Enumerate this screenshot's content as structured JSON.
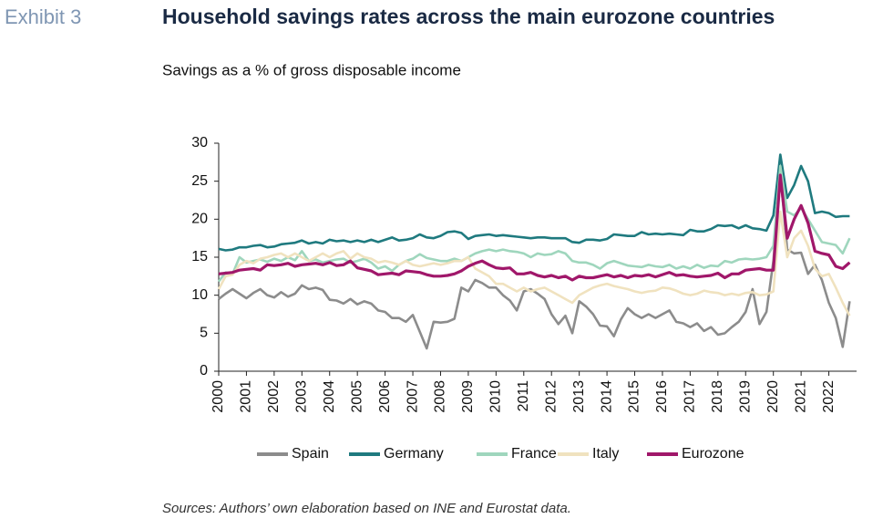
{
  "chart_data": {
    "type": "line",
    "label": "Exhibit 3",
    "title": "Household savings rates across the main eurozone countries",
    "subtitle": "Savings as a % of gross disposable income",
    "source": "Sources: Authors’ own elaboration based on INE and Eurostat data.",
    "x": [
      2000,
      2000.25,
      2000.5,
      2000.75,
      2001,
      2001.25,
      2001.5,
      2001.75,
      2002,
      2002.25,
      2002.5,
      2002.75,
      2003,
      2003.25,
      2003.5,
      2003.75,
      2004,
      2004.25,
      2004.5,
      2004.75,
      2005,
      2005.25,
      2005.5,
      2005.75,
      2006,
      2006.25,
      2006.5,
      2006.75,
      2007,
      2007.25,
      2007.5,
      2007.75,
      2008,
      2008.25,
      2008.5,
      2008.75,
      2009,
      2009.25,
      2009.5,
      2009.75,
      2010,
      2010.25,
      2010.5,
      2010.75,
      2011,
      2011.25,
      2011.5,
      2011.75,
      2012,
      2012.25,
      2012.5,
      2012.75,
      2013,
      2013.25,
      2013.5,
      2013.75,
      2014,
      2014.25,
      2014.5,
      2014.75,
      2015,
      2015.25,
      2015.5,
      2015.75,
      2016,
      2016.25,
      2016.5,
      2016.75,
      2017,
      2017.25,
      2017.5,
      2017.75,
      2018,
      2018.25,
      2018.5,
      2018.75,
      2019,
      2019.25,
      2019.5,
      2019.75,
      2020,
      2020.25,
      2020.5,
      2020.75,
      2021,
      2021.25,
      2021.5,
      2021.75,
      2022,
      2022.25,
      2022.5,
      2022.75
    ],
    "xlim": [
      2000,
      2023
    ],
    "xticks": [
      2000,
      2001,
      2002,
      2003,
      2004,
      2005,
      2006,
      2007,
      2008,
      2009,
      2010,
      2011,
      2012,
      2013,
      2014,
      2015,
      2016,
      2017,
      2018,
      2019,
      2020,
      2021,
      2022
    ],
    "ylim": [
      0,
      30
    ],
    "yticks": [
      0,
      5,
      10,
      15,
      20,
      25,
      30
    ],
    "series": [
      {
        "name": "Spain",
        "color": "#8c8c8c",
        "values": [
          9.5,
          10.2,
          10.8,
          10.2,
          9.6,
          10.3,
          10.8,
          10.0,
          9.7,
          10.4,
          9.8,
          10.2,
          11.3,
          10.8,
          11.0,
          10.7,
          9.4,
          9.3,
          8.9,
          9.5,
          8.8,
          9.2,
          8.9,
          8.0,
          7.8,
          7.0,
          7.0,
          6.5,
          7.4,
          5.2,
          3.0,
          6.5,
          6.4,
          6.5,
          6.9,
          11.0,
          10.5,
          12.0,
          11.6,
          11.0,
          11.0,
          10.0,
          9.3,
          8.0,
          10.5,
          10.8,
          10.2,
          9.5,
          7.5,
          6.2,
          7.3,
          5.0,
          9.2,
          8.5,
          7.5,
          6.0,
          5.9,
          4.6,
          6.8,
          8.3,
          7.5,
          7.0,
          7.5,
          7.0,
          7.5,
          8.0,
          6.5,
          6.3,
          5.8,
          6.3,
          5.3,
          5.8,
          4.8,
          5.0,
          5.8,
          6.5,
          7.8,
          10.8,
          6.2,
          7.8,
          14.5,
          26.0,
          16.0,
          15.5,
          15.6,
          12.8,
          14.0,
          12.0,
          9.0,
          7.0,
          3.2,
          9.2
        ]
      },
      {
        "name": "Germany",
        "color": "#1f7a7f",
        "values": [
          16.1,
          15.9,
          16.0,
          16.3,
          16.3,
          16.5,
          16.6,
          16.3,
          16.4,
          16.7,
          16.8,
          16.9,
          17.2,
          16.8,
          17.0,
          16.8,
          17.3,
          17.1,
          17.2,
          17.0,
          17.2,
          17.0,
          17.3,
          17.0,
          17.3,
          17.6,
          17.2,
          17.3,
          17.5,
          18.0,
          17.6,
          17.5,
          17.8,
          18.3,
          18.4,
          18.2,
          17.4,
          17.8,
          17.9,
          18.0,
          17.8,
          17.9,
          17.8,
          17.7,
          17.6,
          17.5,
          17.6,
          17.6,
          17.5,
          17.5,
          17.5,
          17.0,
          16.9,
          17.3,
          17.3,
          17.2,
          17.4,
          18.0,
          17.9,
          17.8,
          17.8,
          18.3,
          18.0,
          18.1,
          18.0,
          18.1,
          18.0,
          17.9,
          18.6,
          18.4,
          18.4,
          18.7,
          19.2,
          19.1,
          19.2,
          18.8,
          19.2,
          18.8,
          18.7,
          18.5,
          20.5,
          28.5,
          22.8,
          24.5,
          27.0,
          25.0,
          20.8,
          21.0,
          20.8,
          20.3,
          20.4,
          20.4
        ]
      },
      {
        "name": "France",
        "color": "#9fd6bd",
        "values": [
          11.8,
          13.0,
          12.8,
          15.0,
          14.3,
          14.5,
          14.7,
          14.4,
          14.8,
          14.5,
          15.0,
          14.6,
          15.8,
          14.5,
          14.7,
          14.3,
          14.5,
          14.7,
          14.8,
          14.3,
          14.5,
          14.8,
          14.3,
          13.5,
          13.8,
          13.2,
          14.0,
          14.5,
          14.8,
          15.4,
          14.9,
          14.7,
          14.5,
          14.5,
          14.8,
          14.5,
          15.0,
          15.5,
          15.8,
          16.0,
          15.8,
          16.0,
          15.8,
          15.7,
          15.5,
          15.0,
          15.5,
          15.3,
          15.4,
          15.8,
          15.5,
          14.5,
          14.3,
          14.3,
          14.0,
          13.5,
          14.2,
          14.5,
          14.2,
          13.9,
          13.8,
          13.7,
          14.0,
          13.8,
          13.7,
          14.0,
          13.5,
          13.8,
          13.5,
          14.0,
          13.6,
          13.9,
          13.8,
          14.5,
          14.3,
          14.7,
          14.8,
          14.7,
          14.8,
          15.0,
          16.5,
          27.0,
          21.0,
          20.5,
          21.5,
          20.0,
          18.5,
          17.0,
          16.8,
          16.6,
          15.5,
          17.5
        ]
      },
      {
        "name": "Italy",
        "color": "#f0e2bf",
        "values": [
          10.8,
          12.5,
          12.7,
          14.0,
          14.5,
          14.2,
          14.8,
          15.0,
          15.3,
          15.5,
          15.0,
          15.5,
          15.0,
          14.5,
          15.0,
          15.5,
          15.0,
          15.5,
          15.8,
          14.8,
          15.5,
          15.0,
          14.8,
          14.3,
          14.5,
          14.3,
          14.0,
          14.5,
          14.0,
          13.8,
          14.0,
          14.2,
          14.0,
          14.2,
          14.5,
          14.5,
          15.0,
          13.5,
          13.0,
          12.5,
          11.5,
          11.5,
          11.0,
          10.5,
          11.0,
          10.5,
          10.8,
          11.0,
          10.5,
          10.0,
          9.5,
          9.0,
          10.0,
          10.5,
          11.0,
          11.3,
          11.5,
          11.2,
          11.0,
          10.8,
          10.5,
          10.3,
          10.5,
          10.6,
          11.0,
          10.9,
          10.6,
          10.2,
          10.0,
          10.2,
          10.6,
          10.4,
          10.3,
          10.0,
          10.2,
          10.0,
          10.3,
          10.4,
          10.0,
          10.1,
          10.5,
          21.0,
          15.0,
          17.5,
          18.5,
          16.5,
          13.5,
          12.5,
          12.8,
          11.0,
          9.0,
          7.3
        ]
      },
      {
        "name": "Eurozone",
        "color": "#a0176a",
        "values": [
          12.8,
          12.9,
          13.0,
          13.3,
          13.4,
          13.5,
          13.3,
          14.0,
          13.9,
          14.0,
          14.2,
          13.8,
          14.0,
          14.1,
          14.2,
          14.0,
          14.3,
          13.9,
          14.0,
          14.5,
          13.6,
          13.4,
          13.2,
          12.7,
          12.8,
          12.9,
          12.7,
          13.2,
          13.1,
          13.0,
          12.7,
          12.5,
          12.5,
          12.6,
          12.8,
          13.2,
          13.8,
          14.2,
          14.5,
          14.0,
          13.6,
          13.5,
          13.6,
          12.8,
          12.8,
          13.0,
          12.6,
          12.4,
          12.6,
          12.3,
          12.5,
          12.0,
          12.5,
          12.3,
          12.3,
          12.5,
          12.7,
          12.4,
          12.6,
          12.3,
          12.6,
          12.5,
          12.7,
          12.4,
          12.7,
          13.0,
          12.6,
          12.7,
          12.5,
          12.4,
          12.5,
          12.6,
          12.9,
          12.3,
          12.8,
          12.8,
          13.3,
          13.4,
          13.5,
          13.3,
          13.3,
          25.8,
          17.5,
          20.0,
          21.8,
          19.5,
          15.8,
          15.5,
          15.3,
          13.8,
          13.5,
          14.3
        ]
      }
    ]
  }
}
